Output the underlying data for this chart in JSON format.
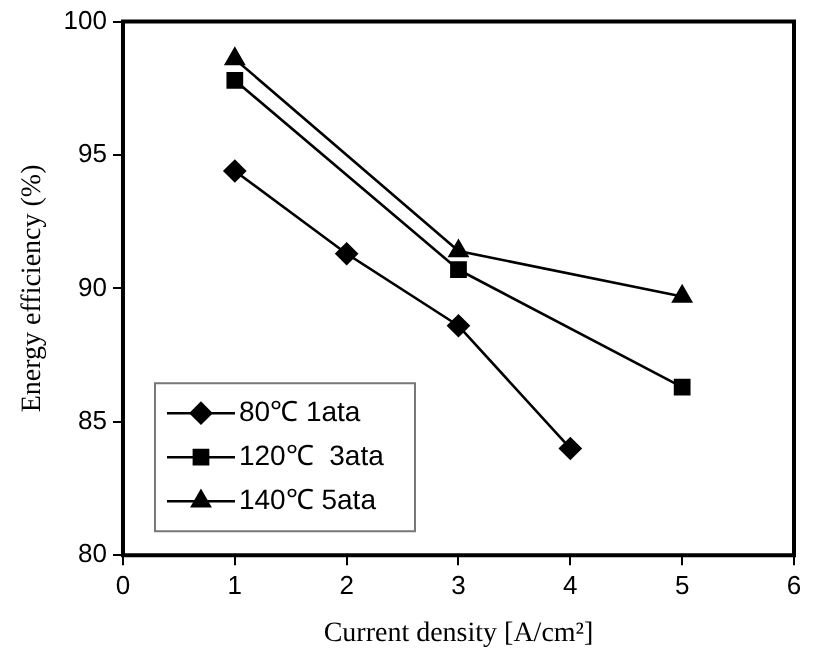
{
  "chart_data": {
    "type": "line",
    "xlabel": "Current density [A/cm²]",
    "ylabel": "Energy efficiency (%)",
    "xlim": [
      0,
      6
    ],
    "xticks": [
      0,
      1,
      2,
      3,
      4,
      5,
      6
    ],
    "ylim": [
      80,
      100
    ],
    "yticks": [
      80,
      85,
      90,
      95,
      100
    ],
    "grid": false,
    "legend": "bottom left",
    "line_style": "solid",
    "series": [
      {
        "name": "80℃ 1ata",
        "color": "#000000",
        "marker": "diamond",
        "x": [
          1,
          2,
          3,
          4
        ],
        "values": [
          94.4,
          91.3,
          88.6,
          84.0
        ]
      },
      {
        "name": "120℃  3ata",
        "color": "#000000",
        "marker": "square",
        "x": [
          1,
          3,
          5
        ],
        "values": [
          97.8,
          90.7,
          86.3
        ]
      },
      {
        "name": "140℃ 5ata",
        "color": "#000000",
        "marker": "triangle",
        "x": [
          1,
          3,
          5
        ],
        "values": [
          98.6,
          91.4,
          89.7
        ]
      }
    ]
  }
}
